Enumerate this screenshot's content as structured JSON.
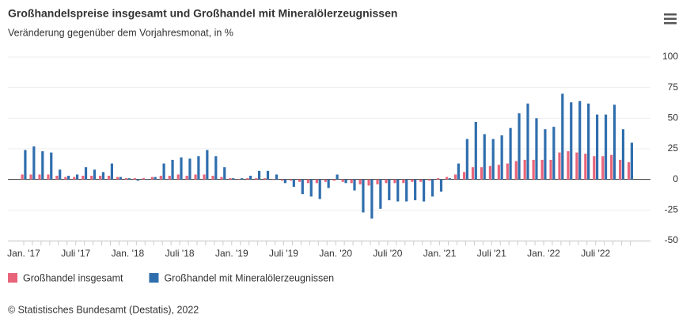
{
  "chart_data": {
    "type": "bar",
    "title": "Großhandelspreise insgesamt und Großhandel mit Mineralölerzeugnissen",
    "subtitle": "Veränderung gegenüber dem Vorjahresmonat, in %",
    "categories": [
      "Jan. '17",
      null,
      null,
      null,
      null,
      null,
      "Juli '17",
      null,
      null,
      null,
      null,
      null,
      "Jan. '18",
      null,
      null,
      null,
      null,
      null,
      "Juli '18",
      null,
      null,
      null,
      null,
      null,
      "Jan. '19",
      null,
      null,
      null,
      null,
      null,
      "Juli '19",
      null,
      null,
      null,
      null,
      null,
      "Jan. '20",
      null,
      null,
      null,
      null,
      null,
      "Juli '20",
      null,
      null,
      null,
      null,
      null,
      "Jan. '21",
      null,
      null,
      null,
      null,
      null,
      "Juli '21",
      null,
      null,
      null,
      null,
      null,
      "Jan. '22",
      null,
      null,
      null,
      null,
      null,
      "Juli '22",
      null,
      null,
      null,
      null
    ],
    "series": [
      {
        "name": "Großhandel insgesamt",
        "color": "#e8647a",
        "values": [
          4,
          4,
          4,
          4,
          3,
          2,
          2,
          3,
          3,
          3,
          3,
          2,
          1,
          1,
          1,
          2,
          3,
          3,
          4,
          3,
          4,
          4,
          3,
          2,
          1,
          0,
          1,
          1,
          1,
          0,
          -1,
          -1,
          -2,
          -3,
          -3,
          -2,
          -1,
          -2,
          -3,
          -4,
          -5,
          -4,
          -3,
          -3,
          -3,
          -2,
          -2,
          -1,
          1,
          2,
          4,
          6,
          10,
          10,
          11,
          12,
          13,
          15,
          16,
          16,
          16,
          16,
          22,
          23,
          22,
          21,
          19,
          19,
          20,
          16,
          14
        ]
      },
      {
        "name": "Großhandel mit Mineralölerzeugnissen",
        "color": "#2f6ead",
        "values": [
          24,
          27,
          23,
          22,
          8,
          3,
          4,
          10,
          8,
          6,
          13,
          2,
          1,
          -1,
          0,
          2,
          13,
          16,
          18,
          17,
          19,
          24,
          19,
          10,
          1,
          1,
          3,
          7,
          7,
          4,
          -3,
          -6,
          -12,
          -14,
          -16,
          -7,
          4,
          -3,
          -9,
          -27,
          -32,
          -24,
          -17,
          -18,
          -18,
          -17,
          -18,
          -14,
          -10,
          1,
          13,
          33,
          47,
          37,
          33,
          36,
          42,
          54,
          62,
          50,
          41,
          43,
          70,
          63,
          64,
          62,
          53,
          53,
          61,
          41,
          30
        ]
      }
    ],
    "ylim": [
      -50,
      100
    ],
    "yticks": [
      -50,
      -25,
      0,
      25,
      50,
      75,
      100
    ],
    "grid": true,
    "source": "© Statistisches Bundesamt (Destatis), 2022"
  }
}
